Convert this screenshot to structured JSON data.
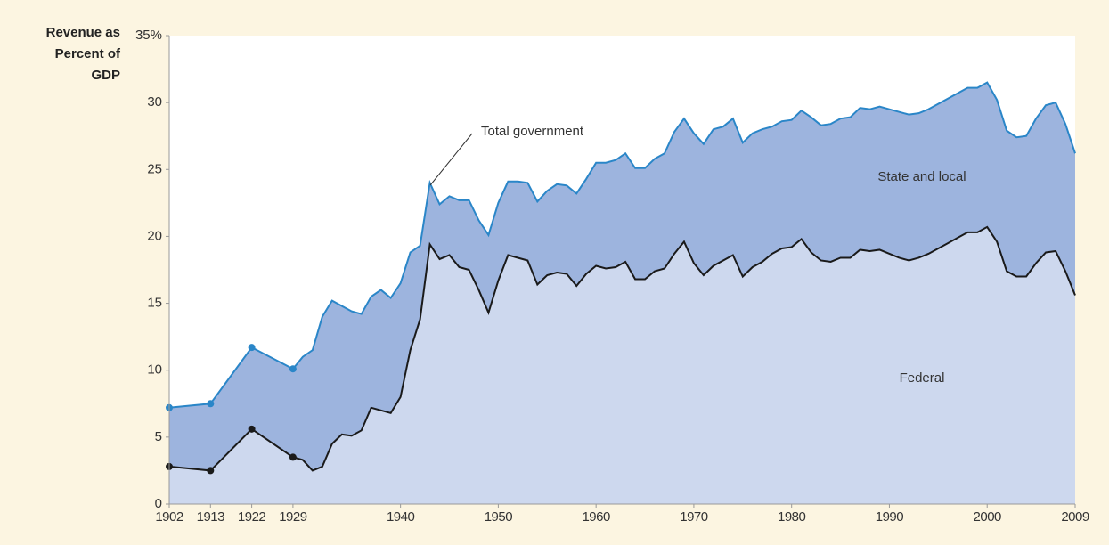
{
  "chart_data": {
    "type": "area",
    "y_label": [
      "Revenue as",
      "Percent of",
      "GDP"
    ],
    "categories": [
      "1902",
      "1913",
      "1922",
      "1929",
      null,
      null,
      null,
      null,
      null,
      null,
      null,
      null,
      null,
      null,
      "1940",
      null,
      null,
      null,
      null,
      null,
      null,
      null,
      null,
      null,
      "1950",
      null,
      null,
      null,
      null,
      null,
      null,
      null,
      null,
      null,
      "1960",
      null,
      null,
      null,
      null,
      null,
      null,
      null,
      null,
      null,
      "1970",
      null,
      null,
      null,
      null,
      null,
      null,
      null,
      null,
      null,
      "1980",
      null,
      null,
      null,
      null,
      null,
      null,
      null,
      null,
      null,
      "1990",
      null,
      null,
      null,
      null,
      null,
      null,
      null,
      null,
      null,
      "2000",
      null,
      null,
      null,
      null,
      null,
      null,
      null,
      null,
      "2009"
    ],
    "series": [
      {
        "name": "Federal",
        "color": "#1a1a1a",
        "fill": "#cdd8ee",
        "values": [
          2.8,
          2.5,
          5.6,
          3.5,
          3.3,
          2.5,
          2.8,
          4.5,
          5.2,
          5.1,
          5.5,
          7.2,
          7.0,
          6.8,
          8.0,
          11.5,
          13.8,
          19.4,
          18.3,
          18.6,
          17.7,
          17.5,
          16.0,
          14.3,
          16.7,
          18.6,
          18.4,
          18.2,
          16.4,
          17.1,
          17.3,
          17.2,
          16.3,
          17.2,
          17.8,
          17.6,
          17.7,
          18.1,
          16.8,
          16.8,
          17.4,
          17.6,
          18.7,
          19.6,
          18.0,
          17.1,
          17.8,
          18.2,
          18.6,
          17.0,
          17.7,
          18.1,
          18.7,
          19.1,
          19.2,
          19.8,
          18.8,
          18.2,
          18.1,
          18.4,
          18.4,
          19.0,
          18.9,
          19.0,
          18.7,
          18.4,
          18.2,
          18.4,
          18.7,
          19.1,
          19.5,
          19.9,
          20.3,
          20.3,
          20.7,
          19.6,
          17.4,
          17.0,
          17.0,
          18.0,
          18.8,
          18.9,
          17.4,
          15.6
        ]
      },
      {
        "name": "Total government",
        "color": "#2a86c8",
        "fill": "#9db4de",
        "values": [
          7.2,
          7.5,
          11.7,
          10.1,
          11.0,
          11.5,
          14.0,
          15.2,
          14.8,
          14.4,
          14.2,
          15.5,
          16.0,
          15.4,
          16.5,
          18.8,
          19.3,
          24.0,
          22.4,
          23.0,
          22.7,
          22.7,
          21.2,
          20.1,
          22.5,
          24.1,
          24.1,
          24.0,
          22.6,
          23.4,
          23.9,
          23.8,
          23.2,
          24.3,
          25.5,
          25.5,
          25.7,
          26.2,
          25.1,
          25.1,
          25.8,
          26.2,
          27.8,
          28.8,
          27.7,
          26.9,
          28.0,
          28.2,
          28.8,
          27.0,
          27.7,
          28.0,
          28.2,
          28.6,
          28.7,
          29.4,
          28.9,
          28.3,
          28.4,
          28.8,
          28.9,
          29.6,
          29.5,
          29.7,
          29.5,
          29.3,
          29.1,
          29.2,
          29.5,
          29.9,
          30.3,
          30.7,
          31.1,
          31.1,
          31.5,
          30.2,
          27.9,
          27.4,
          27.5,
          28.8,
          29.8,
          30.0,
          28.4,
          26.2
        ]
      }
    ],
    "annotations": [
      "State and local"
    ],
    "ylim": [
      0,
      35
    ],
    "yticks": [
      0,
      5,
      10,
      15,
      20,
      25,
      30,
      {
        "value": 35,
        "label": "35%"
      }
    ],
    "grid": false
  }
}
